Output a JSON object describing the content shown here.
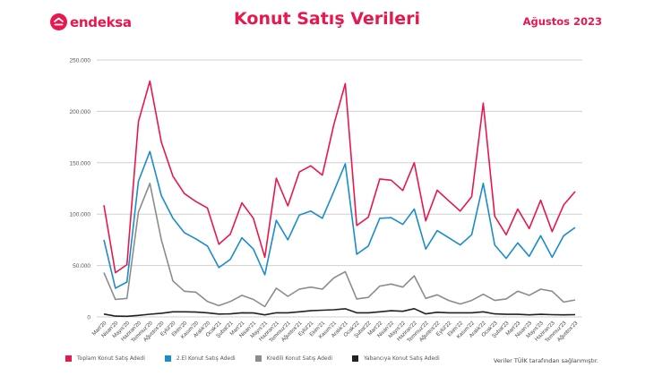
{
  "header": {
    "logo_text": "endeksa",
    "title": "Konut Satış Verileri",
    "period": "Ağustos 2023"
  },
  "footer": {
    "source_note": "Veriler TÜİK tarafından sağlanmıştır."
  },
  "legend": [
    {
      "label": "Toplam Konut Satış Adedi",
      "color": "#e8174d"
    },
    {
      "label": "2.El Konut Satış Adedi",
      "color": "#1b8ccc"
    },
    {
      "label": "Kredili Konut Satış Adedi",
      "color": "#8c8c8c"
    },
    {
      "label": "Yabancıya Konut Satış Adedi",
      "color": "#222222"
    }
  ],
  "chart_data": {
    "type": "line",
    "title": "Konut Satış Verileri",
    "subtitle": "Ağustos 2023",
    "xlabel": "",
    "ylabel": "",
    "ylim": [
      0,
      250000
    ],
    "yticks": [
      0,
      50000,
      100000,
      150000,
      200000,
      250000
    ],
    "ytick_labels": [
      "0",
      "50.000",
      "100.000",
      "150.000",
      "200.000",
      "250.000"
    ],
    "grid": true,
    "legend_position": "bottom",
    "categories": [
      "Mart'20",
      "Nisan'20",
      "Mayıs'20",
      "Haziran'20",
      "Temmuz'20",
      "Ağustos'20",
      "Eylül'20",
      "Ekim'20",
      "Kasım'20",
      "Aralık'20",
      "Ocak'21",
      "Şubat'21",
      "Mart'21",
      "Nisan'21",
      "Mayıs'21",
      "Haziran'21",
      "Temmuz'21",
      "Ağustos'21",
      "Eylül'21",
      "Ekim'21",
      "Kasım'21",
      "Aralık'21",
      "Ocak'22",
      "Şubat'22",
      "Mart'22",
      "Nisan'22",
      "Mayıs'22",
      "Haziran'22",
      "Temmuz'22",
      "Ağustos'22",
      "Eylül'22",
      "Ekim'22",
      "Kasım'22",
      "Aralık'22",
      "Ocak'23",
      "Şubat'23",
      "Mart'23",
      "Nisan'23",
      "Mayıs'23",
      "Haziran'23",
      "Temmuz'23",
      "Ağustos'23"
    ],
    "series": [
      {
        "name": "Toplam Konut Satış Adedi",
        "color": "#e8174d",
        "values": [
          108700,
          43000,
          50900,
          190000,
          229400,
          170000,
          136900,
          120000,
          112300,
          106000,
          70700,
          80600,
          111000,
          96000,
          58000,
          134900,
          108000,
          141000,
          147000,
          138000,
          187000,
          227000,
          88900,
          97000,
          134200,
          133000,
          123000,
          150000,
          93500,
          123300,
          113000,
          103000,
          117000,
          208000,
          98000,
          80000,
          105000,
          86000,
          113500,
          83000,
          109000,
          122000
        ]
      },
      {
        "name": "2.El Konut Satış Adedi",
        "color": "#1b8ccc",
        "values": [
          75000,
          28000,
          34000,
          132000,
          161000,
          118000,
          96000,
          82000,
          76000,
          69000,
          48000,
          56000,
          77000,
          66000,
          41000,
          94000,
          75000,
          99000,
          103000,
          96000,
          122000,
          149000,
          61000,
          69000,
          96000,
          96500,
          90000,
          105000,
          66000,
          84000,
          77000,
          70000,
          80000,
          130000,
          70000,
          57000,
          72000,
          59000,
          79000,
          58000,
          79000,
          87000
        ]
      },
      {
        "name": "Kredili Konut Satış Adedi",
        "color": "#8c8c8c",
        "values": [
          43000,
          17000,
          18000,
          102000,
          130000,
          75000,
          35000,
          25000,
          24000,
          15000,
          11000,
          15000,
          21000,
          17000,
          10000,
          28000,
          20000,
          27000,
          29000,
          27000,
          38000,
          44000,
          17500,
          19000,
          30000,
          32000,
          29000,
          40000,
          18000,
          21500,
          16000,
          12500,
          16000,
          22000,
          16000,
          17500,
          25000,
          21000,
          27000,
          25000,
          14500,
          16500
        ]
      },
      {
        "name": "Yabancıya Konut Satış Adedi",
        "color": "#222222",
        "values": [
          2800,
          800,
          600,
          1500,
          2600,
          3600,
          5000,
          5000,
          4700,
          4000,
          2800,
          3000,
          4000,
          3800,
          2000,
          4000,
          4000,
          5000,
          6000,
          6500,
          7000,
          7900,
          4000,
          4000,
          5000,
          6000,
          5500,
          8000,
          3000,
          4500,
          4000,
          4000,
          4000,
          5000,
          3000,
          2500,
          2500,
          2000,
          2500,
          2200,
          2000,
          2200
        ]
      }
    ]
  }
}
